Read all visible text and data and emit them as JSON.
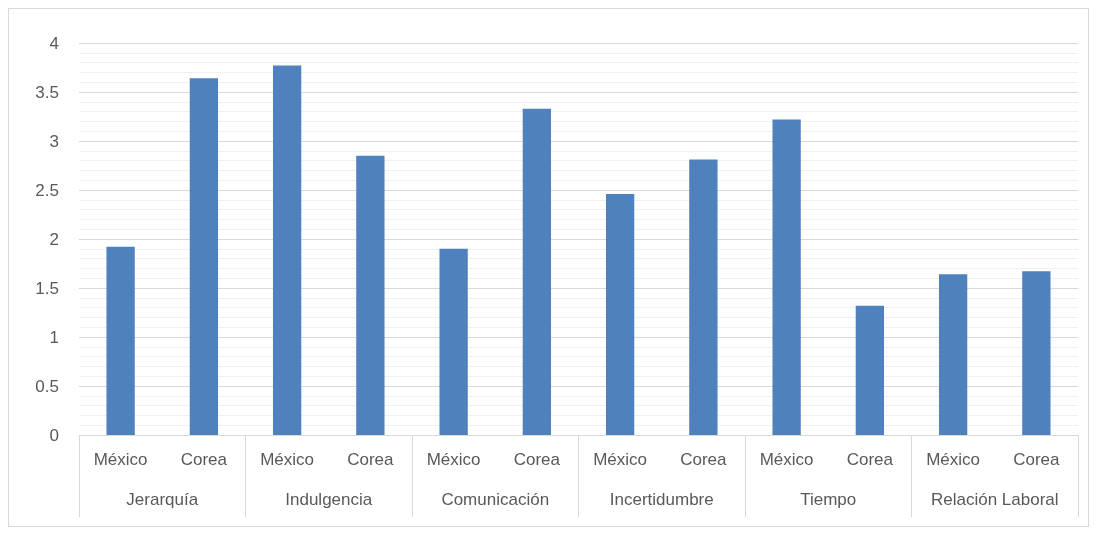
{
  "chart_data": {
    "type": "bar",
    "categories": [
      "México",
      "Corea",
      "México",
      "Corea",
      "México",
      "Corea",
      "México",
      "Corea",
      "México",
      "Corea",
      "México",
      "Corea"
    ],
    "values": [
      1.92,
      3.64,
      3.77,
      2.85,
      1.9,
      3.33,
      2.46,
      2.81,
      3.22,
      1.32,
      1.64,
      1.67
    ],
    "color": "#4f81bd",
    "annotations": [
      "Jerarquía",
      "Indulgencia",
      "Comunicación",
      "Incertidumbre",
      "Tiempo",
      "Relación Laboral"
    ],
    "ylim": [
      0,
      4
    ],
    "yticks": [
      0,
      0.5,
      1,
      1.5,
      2,
      2.5,
      3,
      3.5,
      4
    ],
    "grid": true
  }
}
